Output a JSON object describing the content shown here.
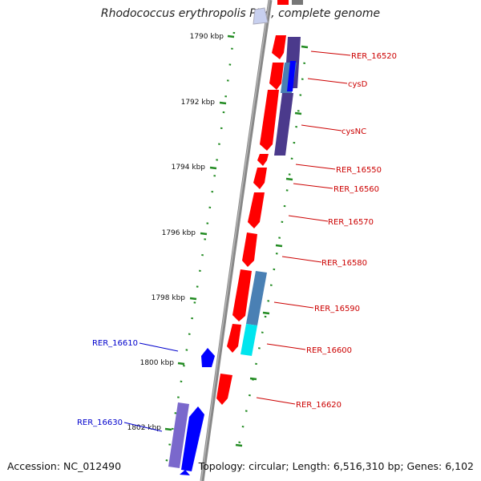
{
  "title": "Rhodococcus erythropolis PR4, complete genome",
  "footer": {
    "accession": "Accession: NC_012490",
    "summary": "Topology: circular; Length: 6,516,310 bp; Genes: 6,102"
  },
  "scale_labels": [
    "1790 kbp",
    "1792 kbp",
    "1794 kbp",
    "1796 kbp",
    "1798 kbp",
    "1800 kbp",
    "1802 kbp"
  ],
  "gene_labels_right": [
    "RER_16520",
    "cysD",
    "cysNC",
    "RER_16550",
    "RER_16560",
    "RER_16570",
    "RER_16580",
    "RER_16590",
    "RER_16600",
    "RER_16620"
  ],
  "gene_labels_left": [
    "RER_16610",
    "RER_16630"
  ],
  "colors": {
    "gene_forward": "#ff0000",
    "gene_reverse": "#0000ff",
    "label_forward": "#cc0000",
    "label_reverse": "#0000cc",
    "cds_dark": "#4b3a8c",
    "cds_steel": "#4a80b4",
    "cds_cyan": "#00e5ee",
    "cds_violet": "#7a68cc",
    "backbone": "#888888",
    "tick": "#228b22"
  }
}
